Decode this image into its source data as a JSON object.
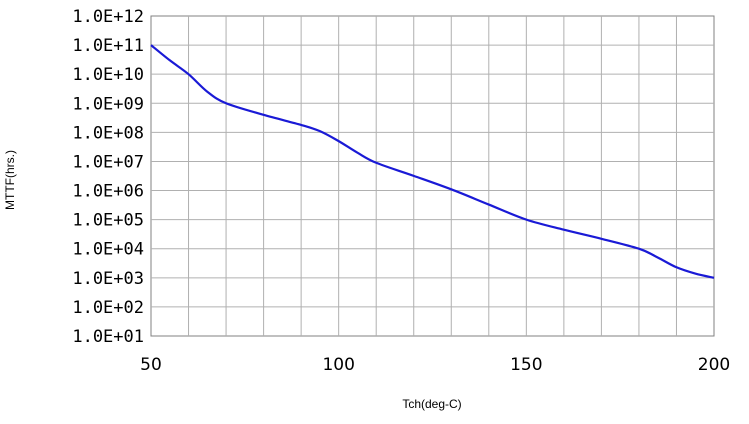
{
  "chart_data": {
    "type": "line",
    "title": "",
    "xlabel": "Tch(deg-C)",
    "ylabel": "MTTF(hrs.)",
    "yscale": "log",
    "xlim": [
      50,
      200
    ],
    "ylim": [
      10,
      1000000000000
    ],
    "grid": true,
    "x_ticks": [
      50,
      100,
      150,
      200
    ],
    "x_tick_labels": [
      "50",
      "100",
      "150",
      "200"
    ],
    "x_grid_step": 10,
    "y_ticks": [
      10.0,
      100.0,
      1000.0,
      10000.0,
      100000.0,
      1000000.0,
      10000000.0,
      100000000.0,
      1000000000.0,
      10000000000.0,
      100000000000.0,
      1000000000000.0
    ],
    "y_tick_labels": [
      "1.0E+01",
      "1.0E+02",
      "1.0E+03",
      "1.0E+04",
      "1.0E+05",
      "1.0E+06",
      "1.0E+07",
      "1.0E+08",
      "1.0E+09",
      "1.0E+10",
      "1.0E+11",
      "1.0E+12"
    ],
    "line_color": "#1a1ad6",
    "series": [
      {
        "x": [
          50,
          55,
          60,
          65,
          70,
          80,
          90,
          95,
          100,
          105,
          110,
          120,
          130,
          140,
          150,
          160,
          170,
          180,
          185,
          190,
          195,
          200
        ],
        "y": [
          100000000000.0,
          30000000000.0,
          10000000000.0,
          2500000000.0,
          1000000000.0,
          400000000.0,
          180000000.0,
          110000000.0,
          50000000.0,
          20000000.0,
          9000000.0,
          3200000.0,
          1100000.0,
          330000.0,
          100000.0,
          45000.0,
          22000.0,
          10000.0,
          5000.0,
          2300.0,
          1400.0,
          1000.0
        ]
      }
    ]
  }
}
